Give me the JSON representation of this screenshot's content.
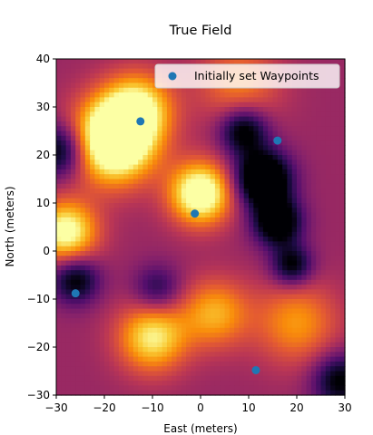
{
  "chart_data": {
    "type": "heatmap",
    "title": "True Field",
    "xlabel": "East (meters)",
    "ylabel": "North (meters)",
    "xlim": [
      -30,
      30
    ],
    "ylim": [
      -30,
      40
    ],
    "xticks": [
      -30,
      -20,
      -10,
      0,
      10,
      20,
      30
    ],
    "yticks": [
      -30,
      -20,
      -10,
      0,
      10,
      20,
      30,
      40
    ],
    "colormap": "inferno",
    "legend_position": "top-right",
    "field_features": [
      {
        "x": -18,
        "y": 23,
        "strength": 0.95,
        "spread": 6
      },
      {
        "x": -13,
        "y": 30,
        "strength": 0.5,
        "spread": 5
      },
      {
        "x": 0,
        "y": 12,
        "strength": 0.75,
        "spread": 4.5
      },
      {
        "x": -28,
        "y": 4,
        "strength": 0.65,
        "spread": 4.5
      },
      {
        "x": -10,
        "y": -18,
        "strength": 0.55,
        "spread": 5
      },
      {
        "x": 3,
        "y": -13,
        "strength": 0.4,
        "spread": 5
      },
      {
        "x": 20,
        "y": -15,
        "strength": 0.35,
        "spread": 6
      },
      {
        "x": 8,
        "y": 35,
        "strength": 0.3,
        "spread": 6
      },
      {
        "x": 13,
        "y": 15,
        "strength": -0.75,
        "spread": 4
      },
      {
        "x": 9,
        "y": 25,
        "strength": -0.5,
        "spread": 3.5
      },
      {
        "x": 16,
        "y": 6,
        "strength": -0.6,
        "spread": 3.5
      },
      {
        "x": 19,
        "y": -3,
        "strength": -0.45,
        "spread": 3
      },
      {
        "x": -29,
        "y": 21,
        "strength": -0.5,
        "spread": 4
      },
      {
        "x": -26,
        "y": -6,
        "strength": -0.45,
        "spread": 3.5
      },
      {
        "x": -9,
        "y": -8,
        "strength": -0.3,
        "spread": 3.5
      },
      {
        "x": 29,
        "y": -27,
        "strength": -0.45,
        "spread": 4
      }
    ],
    "series": [
      {
        "name": "Initially set Waypoints",
        "color": "#1f77b4",
        "x": [
          -12.5,
          16,
          -1.2,
          -26,
          11.5
        ],
        "y": [
          27,
          23,
          7.8,
          -8.8,
          -24.8
        ]
      }
    ]
  }
}
